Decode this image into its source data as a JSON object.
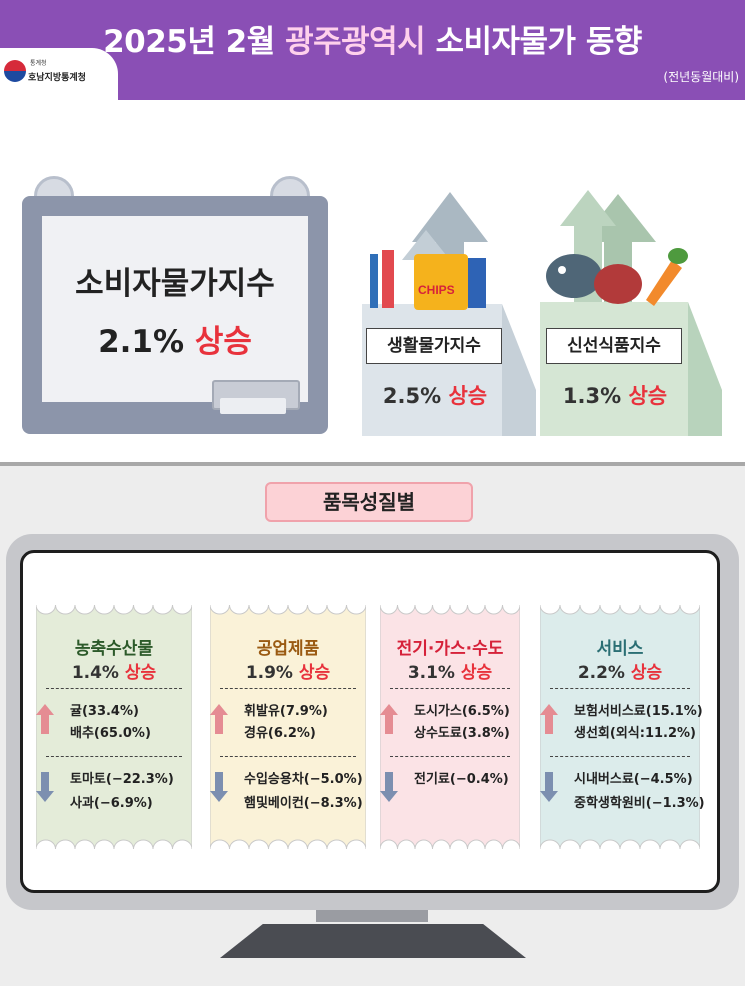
{
  "header": {
    "title_part1": "2025년 2월 ",
    "title_highlight": "광주광역시",
    "title_part2": " 소비자물가 동향",
    "logo_small": "통계청",
    "logo_text": "호남지방통계청",
    "note": "(전년동월대비)"
  },
  "cpi": {
    "title": "소비자물가지수",
    "value": "2.1%",
    "direction": "상승"
  },
  "living": {
    "label": "생활물가지수",
    "value": "2.5%",
    "direction": "상승",
    "chips_text": "CHIPS"
  },
  "fresh": {
    "label": "신선식품지수",
    "value": "1.3%",
    "direction": "상승"
  },
  "section": {
    "title": "품목성질별"
  },
  "categories": [
    {
      "title": "농축수산물",
      "value": "1.4%",
      "direction": "상승",
      "up_items": [
        "귤(33.4%)",
        "배추(65.0%)"
      ],
      "down_items": [
        "토마토(−22.3%)",
        "사과(−6.9%)"
      ]
    },
    {
      "title": "공업제품",
      "value": "1.9%",
      "direction": "상승",
      "up_items": [
        "휘발유(7.9%)",
        "경유(6.2%)"
      ],
      "down_items": [
        "수입승용차(−5.0%)",
        "햄및베이컨(−8.3%)"
      ]
    },
    {
      "title": "전기·가스·수도",
      "value": "3.1%",
      "direction": "상승",
      "up_items": [
        "도시가스(6.5%)",
        "상수도료(3.8%)"
      ],
      "down_items": [
        "전기료(−0.4%)"
      ]
    },
    {
      "title": "서비스",
      "value": "2.2%",
      "direction": "상승",
      "up_items": [
        "보험서비스료(15.1%)",
        "생선회(외식:11.2%)"
      ],
      "down_items": [
        "시내버스료(−4.5%)",
        "중학생학원비(−1.3%)"
      ]
    }
  ],
  "colors": {
    "header_bg": "#8a4fb5",
    "highlight": "#ffd1ec",
    "up_red": "#e8323c",
    "ticket_agri": "#e4ecd9",
    "ticket_ind": "#faf2d8",
    "ticket_util": "#fbe3e6",
    "ticket_serv": "#dceceb",
    "title_agri": "#2c5a2a",
    "title_ind": "#9a5a12",
    "title_util": "#d6223a",
    "title_serv": "#2b6f74",
    "up_arrow": "#e58c93",
    "down_arrow": "#7c8fb0"
  },
  "icons": [
    "up-arrow-icon",
    "down-arrow-icon",
    "statistics-logo-icon",
    "toothbrush-icon",
    "chips-bag-icon",
    "fish-icon",
    "carrot-icon"
  ]
}
